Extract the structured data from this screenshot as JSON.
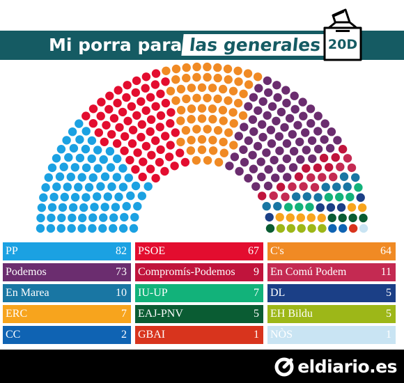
{
  "header": {
    "title_left": "Mi porra para",
    "title_highlight": "las generales",
    "ballot_label": "20D",
    "band_color": "#155b63"
  },
  "parties": [
    {
      "name": "PP",
      "seats": 82,
      "color": "#1ba1e2"
    },
    {
      "name": "PSOE",
      "seats": 67,
      "color": "#e30d2f"
    },
    {
      "name": "C's",
      "seats": 64,
      "color": "#f08a24"
    },
    {
      "name": "Podemos",
      "seats": 73,
      "color": "#6b2d6f"
    },
    {
      "name": "Compromís-Podemos",
      "seats": 9,
      "color": "#c0143c"
    },
    {
      "name": "En Comú Podem",
      "seats": 11,
      "color": "#c42a52"
    },
    {
      "name": "En Marea",
      "seats": 10,
      "color": "#1976a3"
    },
    {
      "name": "IU-UP",
      "seats": 7,
      "color": "#12b27a"
    },
    {
      "name": "DL",
      "seats": 5,
      "color": "#1b3f86"
    },
    {
      "name": "ERC",
      "seats": 7,
      "color": "#f7a41d"
    },
    {
      "name": "EAJ-PNV",
      "seats": 5,
      "color": "#0a5c33"
    },
    {
      "name": "EH Bildu",
      "seats": 5,
      "color": "#9db718"
    },
    {
      "name": "CC",
      "seats": 2,
      "color": "#0f63b3"
    },
    {
      "name": "GBAI",
      "seats": 1,
      "color": "#d8341d"
    },
    {
      "name": "NÒS",
      "seats": 1,
      "color": "#c9e4f3"
    }
  ],
  "footer": {
    "logo_text": "eldiario.es"
  }
}
